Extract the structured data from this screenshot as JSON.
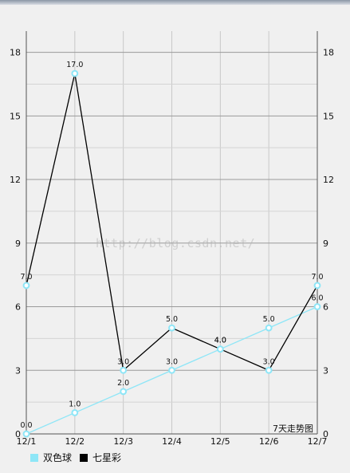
{
  "chart_data": {
    "type": "line",
    "categories": [
      "12/1",
      "12/2",
      "12/3",
      "12/4",
      "12/5",
      "12/6",
      "12/7"
    ],
    "series": [
      {
        "name": "双色球",
        "color": "#8ee6f7",
        "values": [
          0,
          1,
          2,
          3,
          4,
          5,
          6
        ],
        "value_labels": [
          "0.0",
          "1.0",
          "2.0",
          "3.0",
          "4.0",
          "5.0",
          "6.0"
        ]
      },
      {
        "name": "七星彩",
        "color": "#000000",
        "values": [
          7,
          17,
          3,
          5,
          4,
          3,
          7
        ],
        "value_labels": [
          "7.0",
          "17.0",
          "3.0",
          "5.0",
          "4.0",
          "3.0",
          "7.0"
        ]
      }
    ],
    "ylim": [
      0,
      19
    ],
    "y_ticks": [
      "0",
      "3",
      "6",
      "9",
      "12",
      "15",
      "18"
    ],
    "y_tick_values": [
      0,
      3,
      6,
      9,
      12,
      15,
      18
    ],
    "grid": true,
    "legend_position": "bottom-left",
    "description": "7天走势图",
    "watermark": "http://blog.csdn.net/"
  }
}
